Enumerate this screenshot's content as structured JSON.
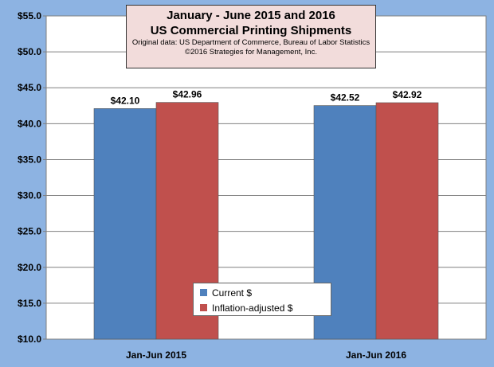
{
  "chart_data": {
    "type": "bar",
    "title": "January - June 2015 and 2016",
    "subtitle": "US Commercial Printing Shipments",
    "source_lines": [
      "Original data: US Department of Commerce, Bureau of Labor Statistics",
      "©2016 Strategies for Management, Inc."
    ],
    "categories": [
      "Jan-Jun 2015",
      "Jan-Jun 2016"
    ],
    "series": [
      {
        "name": "Current $",
        "values": [
          42.1,
          42.52
        ],
        "labels": [
          "$42.10",
          "$42.52"
        ],
        "color": "#4f81bd"
      },
      {
        "name": "Inflation-adjusted $",
        "values": [
          42.96,
          42.92
        ],
        "labels": [
          "$42.96",
          "$42.92"
        ],
        "color": "#c0504d"
      }
    ],
    "ylim": [
      10.0,
      55.0
    ],
    "yticks": [
      {
        "value": 10,
        "label": "$10.0"
      },
      {
        "value": 15,
        "label": "$15.0"
      },
      {
        "value": 20,
        "label": "$20.0"
      },
      {
        "value": 25,
        "label": "$25.0"
      },
      {
        "value": 30,
        "label": "$30.0"
      },
      {
        "value": 35,
        "label": "$35.0"
      },
      {
        "value": 40,
        "label": "$40.0"
      },
      {
        "value": 45,
        "label": "$45.0"
      },
      {
        "value": 50,
        "label": "$50.0"
      },
      {
        "value": 55,
        "label": "$55.0"
      }
    ],
    "grid": true,
    "legend_position": "bottom-center",
    "colors": {
      "background": "#8db3e2",
      "plot_area": "#ffffff",
      "title_box": "#f2dcdb"
    }
  }
}
